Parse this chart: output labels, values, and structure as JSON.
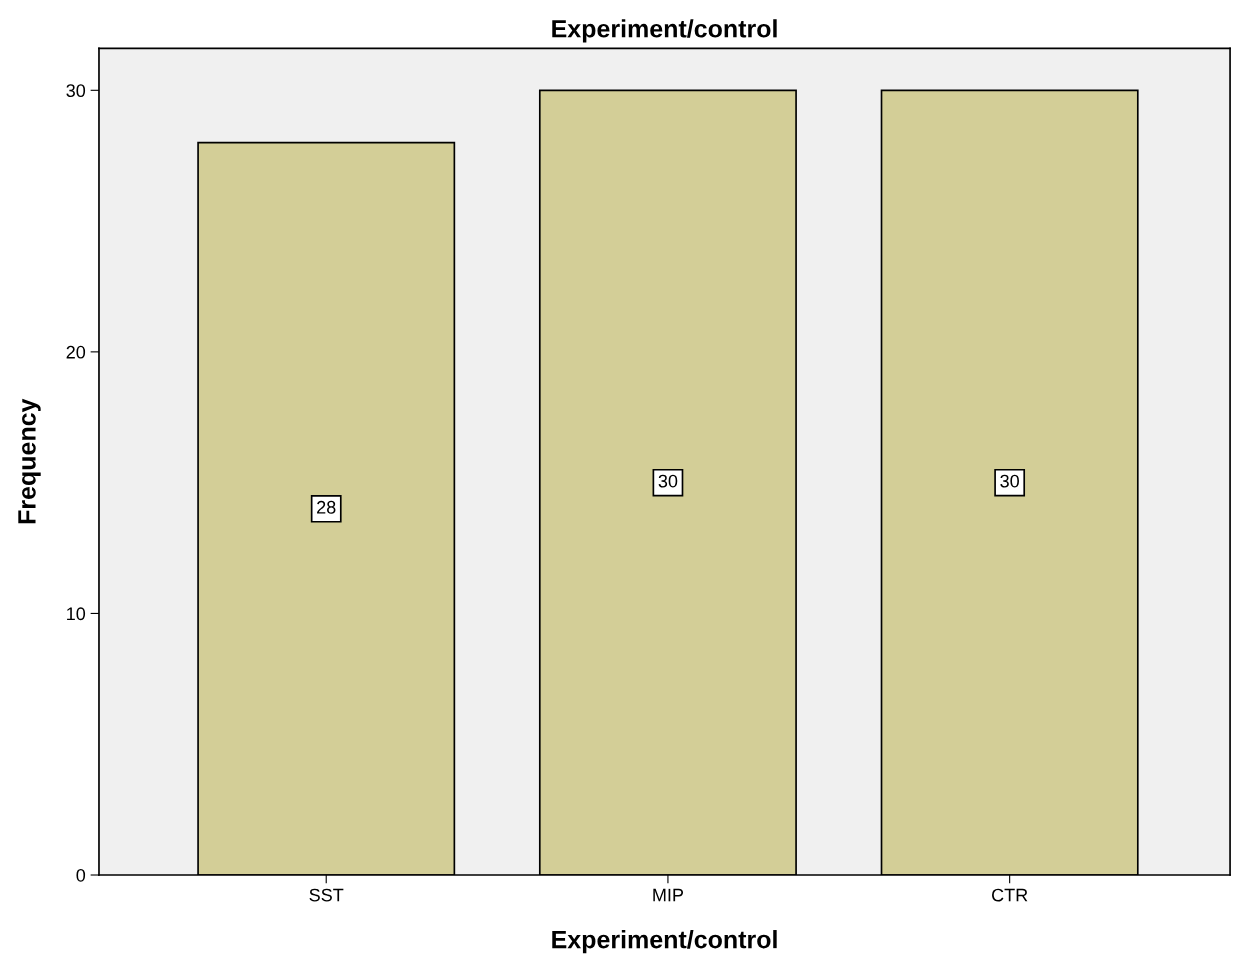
{
  "chart_data": {
    "type": "bar",
    "title": "Experiment/control",
    "xlabel": "Experiment/control",
    "ylabel": "Frequency",
    "categories": [
      "SST",
      "MIP",
      "CTR"
    ],
    "values": [
      28,
      30,
      30
    ],
    "color": "#d3ce97",
    "ylim": [
      0,
      31.6
    ],
    "yticks": [
      0,
      10,
      20,
      30
    ],
    "grid": false,
    "data_labels": true
  }
}
